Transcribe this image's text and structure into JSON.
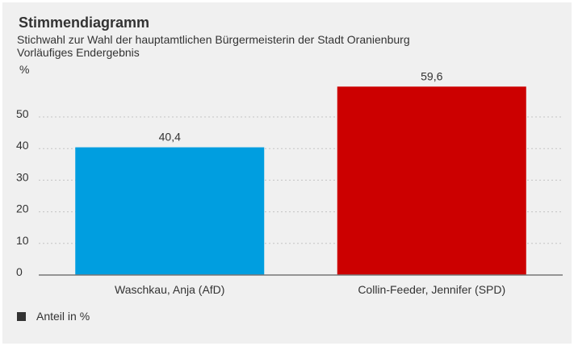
{
  "header": {
    "title": "Stimmendiagramm",
    "subtitle_1": "Stichwahl zur Wahl der hauptamtlichen Bürgermeisterin der Stadt Oranienburg",
    "subtitle_2": "Vorläufiges Endergebnis"
  },
  "legend": {
    "label": "Anteil in %",
    "color": "#333333"
  },
  "chart_data": {
    "type": "bar",
    "title": "Stimmendiagramm",
    "subtitle": "Stichwahl zur Wahl der hauptamtlichen Bürgermeisterin der Stadt Oranienburg — Vorläufiges Endergebnis",
    "categories": [
      "Waschkau, Anja (AfD)",
      "Collin-Feeder, Jennifer (SPD)"
    ],
    "series": [
      {
        "name": "Anteil in %",
        "values": [
          40.4,
          59.6
        ]
      }
    ],
    "value_labels": [
      "40,4",
      "59,6"
    ],
    "colors": [
      "#009ee0",
      "#cc0000"
    ],
    "ylabel": "%",
    "yticks": [
      0,
      10,
      20,
      30,
      40,
      50
    ],
    "ytick_labels": [
      "0",
      "10",
      "20",
      "30",
      "40",
      "50"
    ],
    "ylim": [
      0,
      60
    ],
    "grid": true,
    "legend_position": "bottom-left"
  }
}
